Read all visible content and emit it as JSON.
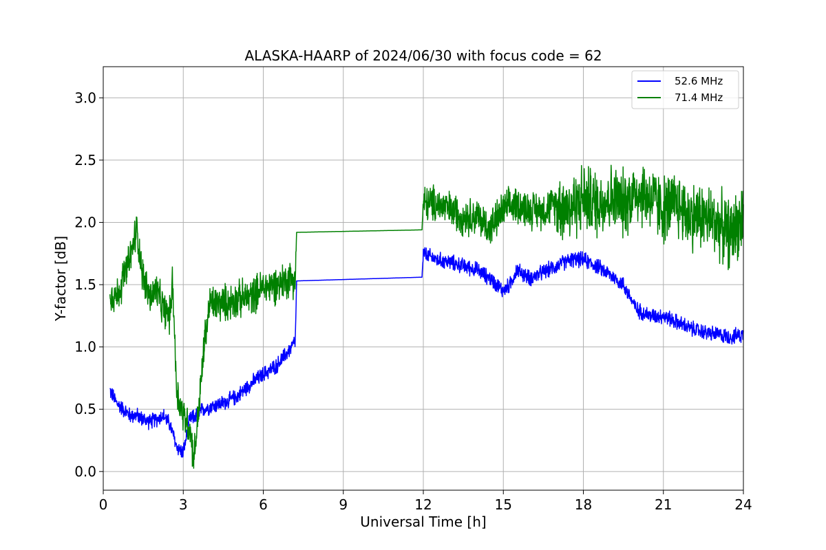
{
  "chart_data": {
    "type": "line",
    "title": "ALASKA-HAARP of 2024/06/30 with focus code = 62",
    "xlabel": "Universal Time [h]",
    "ylabel": "Y-factor [dB]",
    "xlim": [
      0,
      24
    ],
    "ylim": [
      -0.15,
      3.25
    ],
    "xticks": [
      0,
      3,
      6,
      9,
      12,
      15,
      18,
      21,
      24
    ],
    "xtick_labels": [
      "0",
      "3",
      "6",
      "9",
      "12",
      "15",
      "18",
      "21",
      "24"
    ],
    "yticks": [
      0.0,
      0.5,
      1.0,
      1.5,
      2.0,
      2.5,
      3.0
    ],
    "ytick_labels": [
      "0.0",
      "0.5",
      "1.0",
      "1.5",
      "2.0",
      "2.5",
      "3.0"
    ],
    "grid": true,
    "legend_position": "top-right",
    "series": [
      {
        "name": "52.6 MHz",
        "color": "#0000ff",
        "x": [
          0.25,
          0.5,
          0.75,
          1.0,
          1.25,
          1.5,
          1.75,
          2.0,
          2.25,
          2.5,
          2.75,
          3.0,
          3.25,
          3.5,
          3.75,
          4.0,
          4.5,
          5.0,
          5.5,
          6.0,
          6.5,
          7.0,
          7.2,
          7.25,
          11.95,
          12.0,
          12.5,
          13.0,
          13.5,
          14.0,
          14.5,
          15.0,
          15.25,
          15.5,
          16.0,
          16.5,
          17.0,
          17.5,
          18.0,
          18.5,
          19.0,
          19.5,
          20.0,
          20.5,
          21.0,
          21.5,
          22.0,
          22.5,
          23.0,
          23.5,
          24.0
        ],
        "y": [
          0.65,
          0.55,
          0.5,
          0.45,
          0.45,
          0.42,
          0.4,
          0.42,
          0.45,
          0.38,
          0.2,
          0.15,
          0.42,
          0.45,
          0.5,
          0.52,
          0.55,
          0.6,
          0.7,
          0.78,
          0.85,
          0.98,
          1.05,
          1.53,
          1.56,
          1.75,
          1.7,
          1.68,
          1.65,
          1.62,
          1.55,
          1.45,
          1.5,
          1.62,
          1.55,
          1.6,
          1.65,
          1.7,
          1.7,
          1.65,
          1.58,
          1.5,
          1.3,
          1.25,
          1.25,
          1.2,
          1.15,
          1.12,
          1.1,
          1.08,
          1.1
        ]
      },
      {
        "name": "71.4 MHz",
        "color": "#008000",
        "x": [
          0.25,
          0.5,
          0.75,
          1.0,
          1.25,
          1.5,
          1.75,
          2.0,
          2.25,
          2.5,
          2.6,
          2.75,
          3.0,
          3.25,
          3.4,
          3.6,
          3.8,
          4.0,
          4.5,
          5.0,
          5.5,
          6.0,
          6.5,
          7.0,
          7.2,
          7.25,
          11.95,
          12.0,
          12.5,
          13.0,
          13.5,
          14.0,
          14.5,
          15.0,
          15.5,
          16.0,
          16.5,
          17.0,
          17.5,
          18.0,
          18.5,
          19.0,
          19.5,
          20.0,
          20.5,
          21.0,
          21.5,
          22.0,
          22.5,
          23.0,
          23.5,
          24.0
        ],
        "y": [
          1.45,
          1.4,
          1.55,
          1.7,
          1.95,
          1.55,
          1.4,
          1.45,
          1.3,
          1.25,
          1.55,
          0.65,
          0.45,
          0.35,
          0.1,
          0.55,
          1.05,
          1.35,
          1.35,
          1.38,
          1.4,
          1.48,
          1.5,
          1.55,
          1.55,
          1.92,
          1.94,
          2.15,
          2.15,
          2.1,
          2.05,
          2.05,
          1.95,
          2.1,
          2.15,
          2.1,
          2.1,
          2.15,
          2.12,
          2.2,
          2.15,
          2.2,
          2.15,
          2.25,
          2.2,
          2.1,
          2.15,
          2.05,
          2.05,
          2.0,
          1.9,
          2.05
        ]
      }
    ]
  }
}
